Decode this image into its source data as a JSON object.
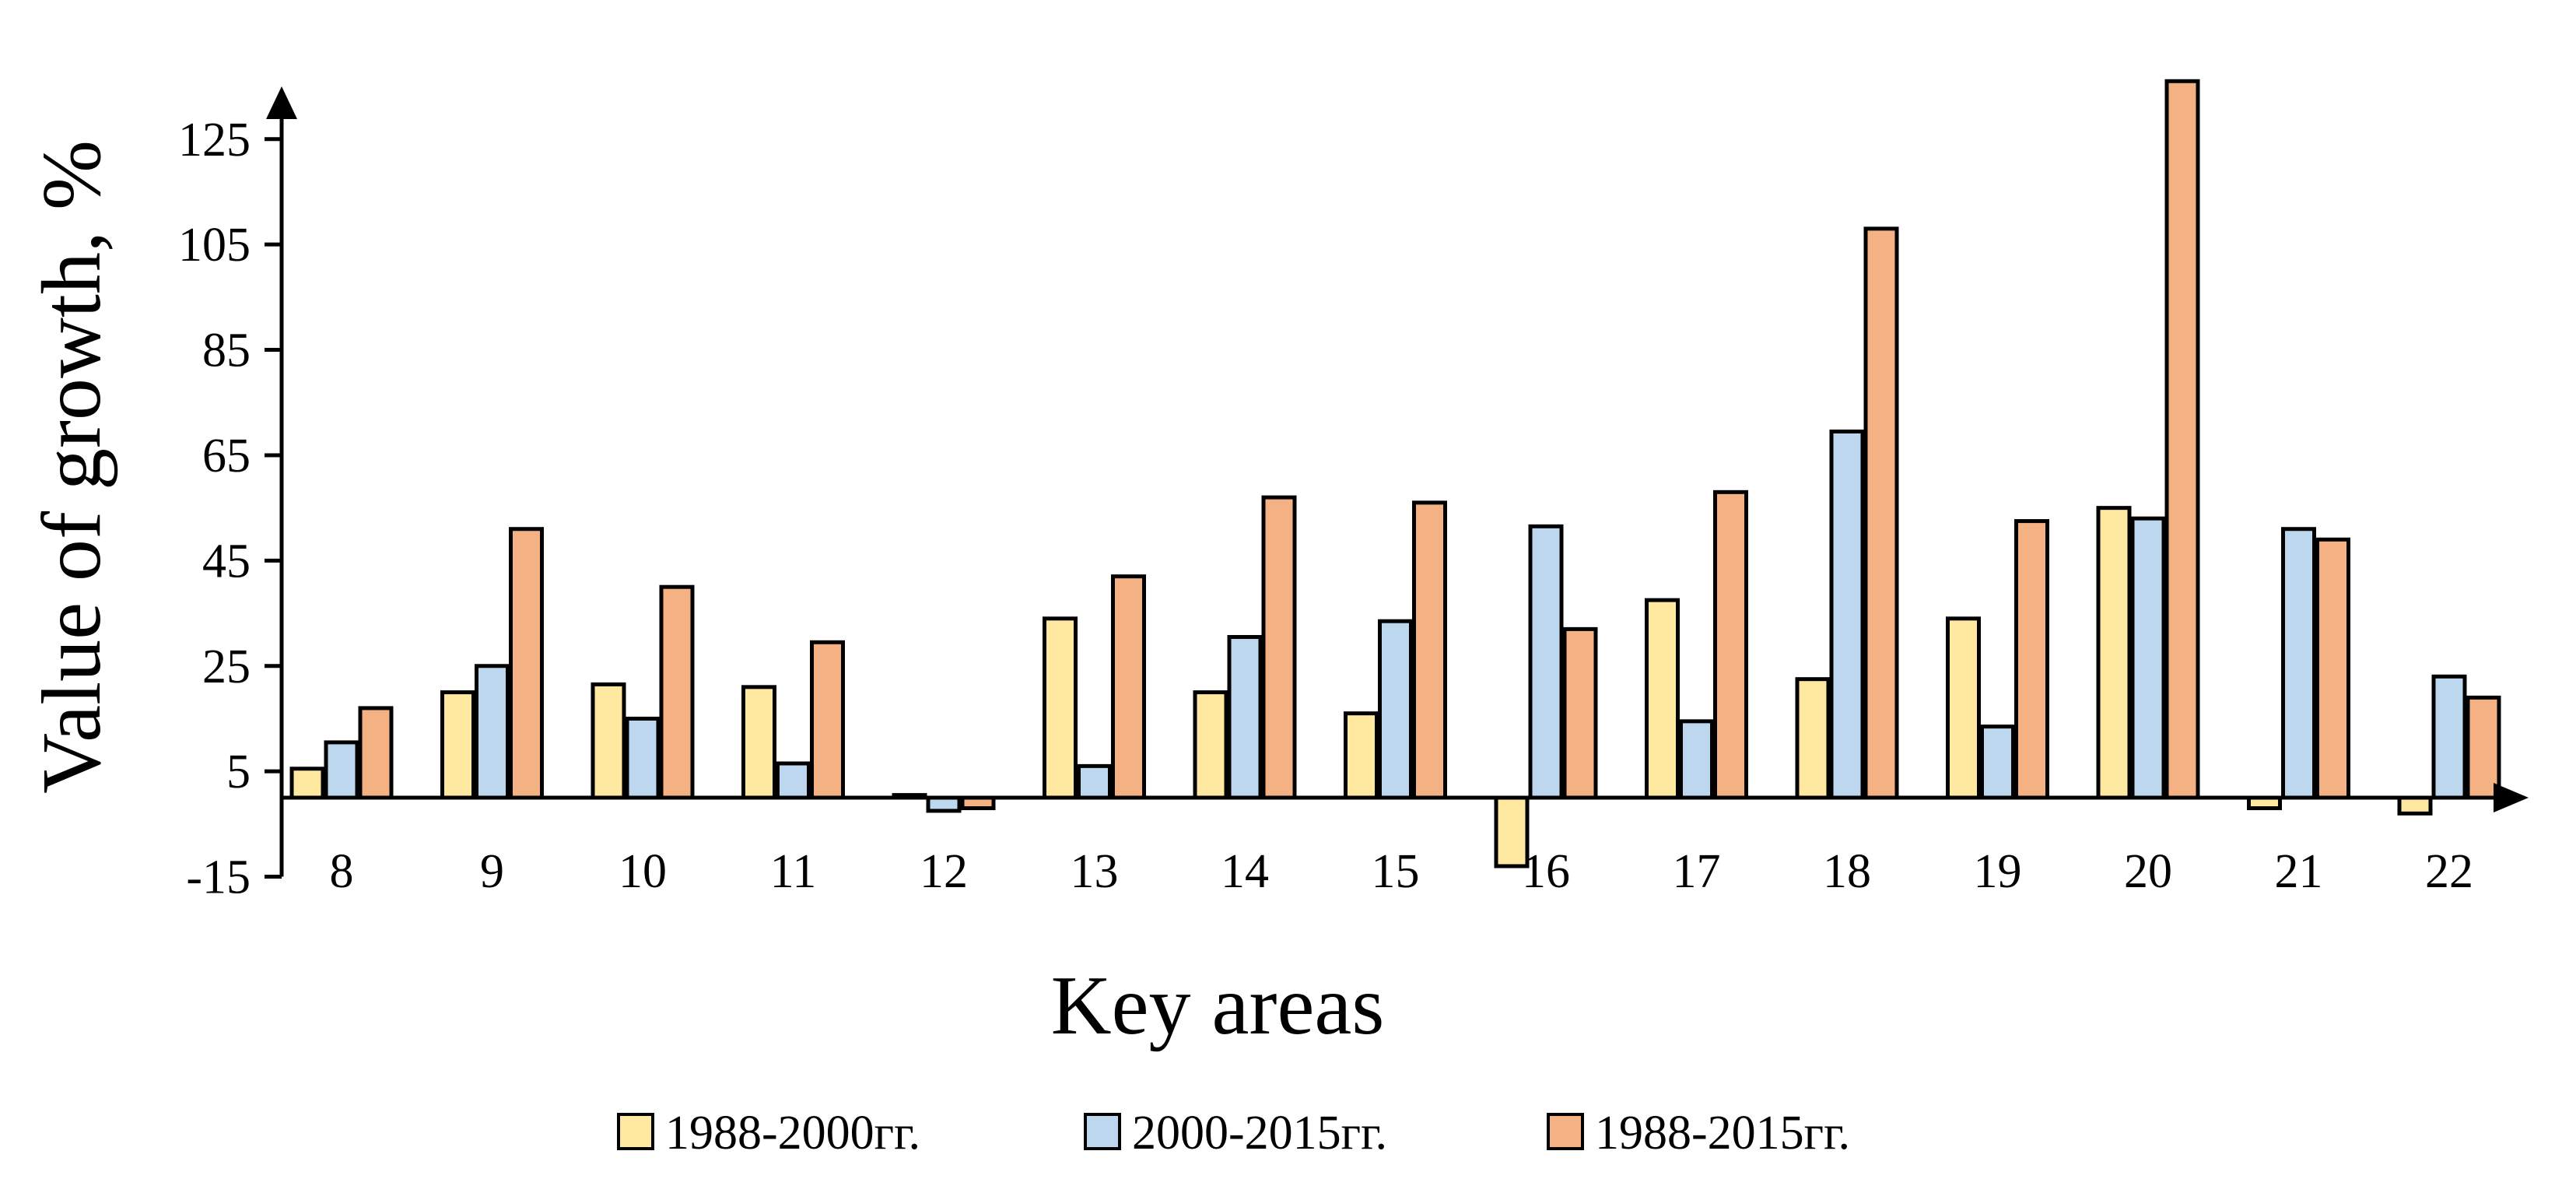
{
  "chart_data": {
    "type": "bar",
    "title": "",
    "xlabel": "Key areas",
    "ylabel": "Value of growth, %",
    "categories": [
      "8",
      "9",
      "10",
      "11",
      "12",
      "13",
      "14",
      "15",
      "16",
      "17",
      "18",
      "19",
      "20",
      "21",
      "22"
    ],
    "series": [
      {
        "name": "1988-2000гг.",
        "color": "#FFE8A0",
        "values": [
          5.5,
          20,
          21.5,
          21,
          0.5,
          34,
          20,
          16,
          -13,
          37.5,
          22.5,
          34,
          55,
          -2,
          -3
        ]
      },
      {
        "name": "2000-2015гг.",
        "color": "#BDD7EE",
        "values": [
          10.5,
          25,
          15,
          6.5,
          -2.5,
          6,
          30.5,
          33.5,
          51.5,
          14.5,
          69.5,
          13.5,
          53,
          51,
          23
        ]
      },
      {
        "name": "1988-2015гг.",
        "color": "#F4B183",
        "values": [
          17,
          51,
          40,
          29.5,
          -2,
          42,
          57,
          56,
          32,
          58,
          108,
          52.5,
          136,
          49,
          19
        ]
      }
    ],
    "yticks": [
      -15,
      5,
      25,
      45,
      65,
      85,
      105,
      125
    ],
    "ylim": [
      -15,
      136
    ],
    "grid": false,
    "legend": "bottom"
  }
}
